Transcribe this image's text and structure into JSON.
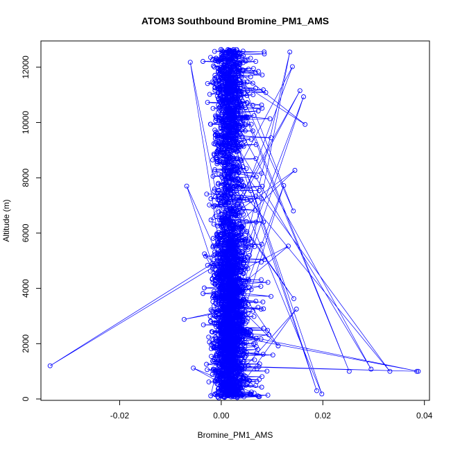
{
  "chart_data": {
    "type": "scatter",
    "title": "ATOM3 Southbound Bromine_PM1_AMS",
    "xlabel": "Bromine_PM1_AMS",
    "ylabel": "Altitude (m)",
    "xlim": [
      -0.0355,
      0.041
    ],
    "ylim": [
      -50,
      12950
    ],
    "x_ticks": [
      -0.02,
      0.0,
      0.02,
      0.04
    ],
    "x_tick_labels": [
      "-0.02",
      "0.00",
      "0.02",
      "0.04"
    ],
    "y_ticks": [
      0,
      2000,
      4000,
      6000,
      8000,
      10000,
      12000
    ],
    "y_tick_labels": [
      "0",
      "2000",
      "4000",
      "6000",
      "8000",
      "10000",
      "12000"
    ],
    "grid": false,
    "legend": "none",
    "series_color": "#0000ff",
    "marker": "open-circle",
    "line": true,
    "highlight_points": [
      {
        "x": -0.0337,
        "y": 1200
      },
      {
        "x": -0.0055,
        "y": 1120
      },
      {
        "x": -0.0033,
        "y": 5250
      },
      {
        "x": -0.0068,
        "y": 7700
      },
      {
        "x": -0.0073,
        "y": 2880
      },
      {
        "x": -0.0061,
        "y": 12180
      },
      {
        "x": 0.0385,
        "y": 1000
      },
      {
        "x": 0.0388,
        "y": 1000
      },
      {
        "x": 0.0332,
        "y": 1000
      },
      {
        "x": 0.0295,
        "y": 1080
      },
      {
        "x": 0.0252,
        "y": 1000
      },
      {
        "x": 0.0198,
        "y": 180
      },
      {
        "x": 0.0188,
        "y": 300
      },
      {
        "x": 0.0162,
        "y": 10930
      },
      {
        "x": 0.0155,
        "y": 11150
      },
      {
        "x": 0.0165,
        "y": 9930
      },
      {
        "x": 0.0143,
        "y": 3630
      },
      {
        "x": 0.0148,
        "y": 3250
      },
      {
        "x": 0.0145,
        "y": 8270
      },
      {
        "x": 0.0142,
        "y": 6800
      },
      {
        "x": 0.014,
        "y": 12020
      },
      {
        "x": 0.0135,
        "y": 12550
      },
      {
        "x": 0.0132,
        "y": 5530
      },
      {
        "x": 0.0123,
        "y": 7720
      },
      {
        "x": 0.0112,
        "y": 1920
      }
    ]
  }
}
